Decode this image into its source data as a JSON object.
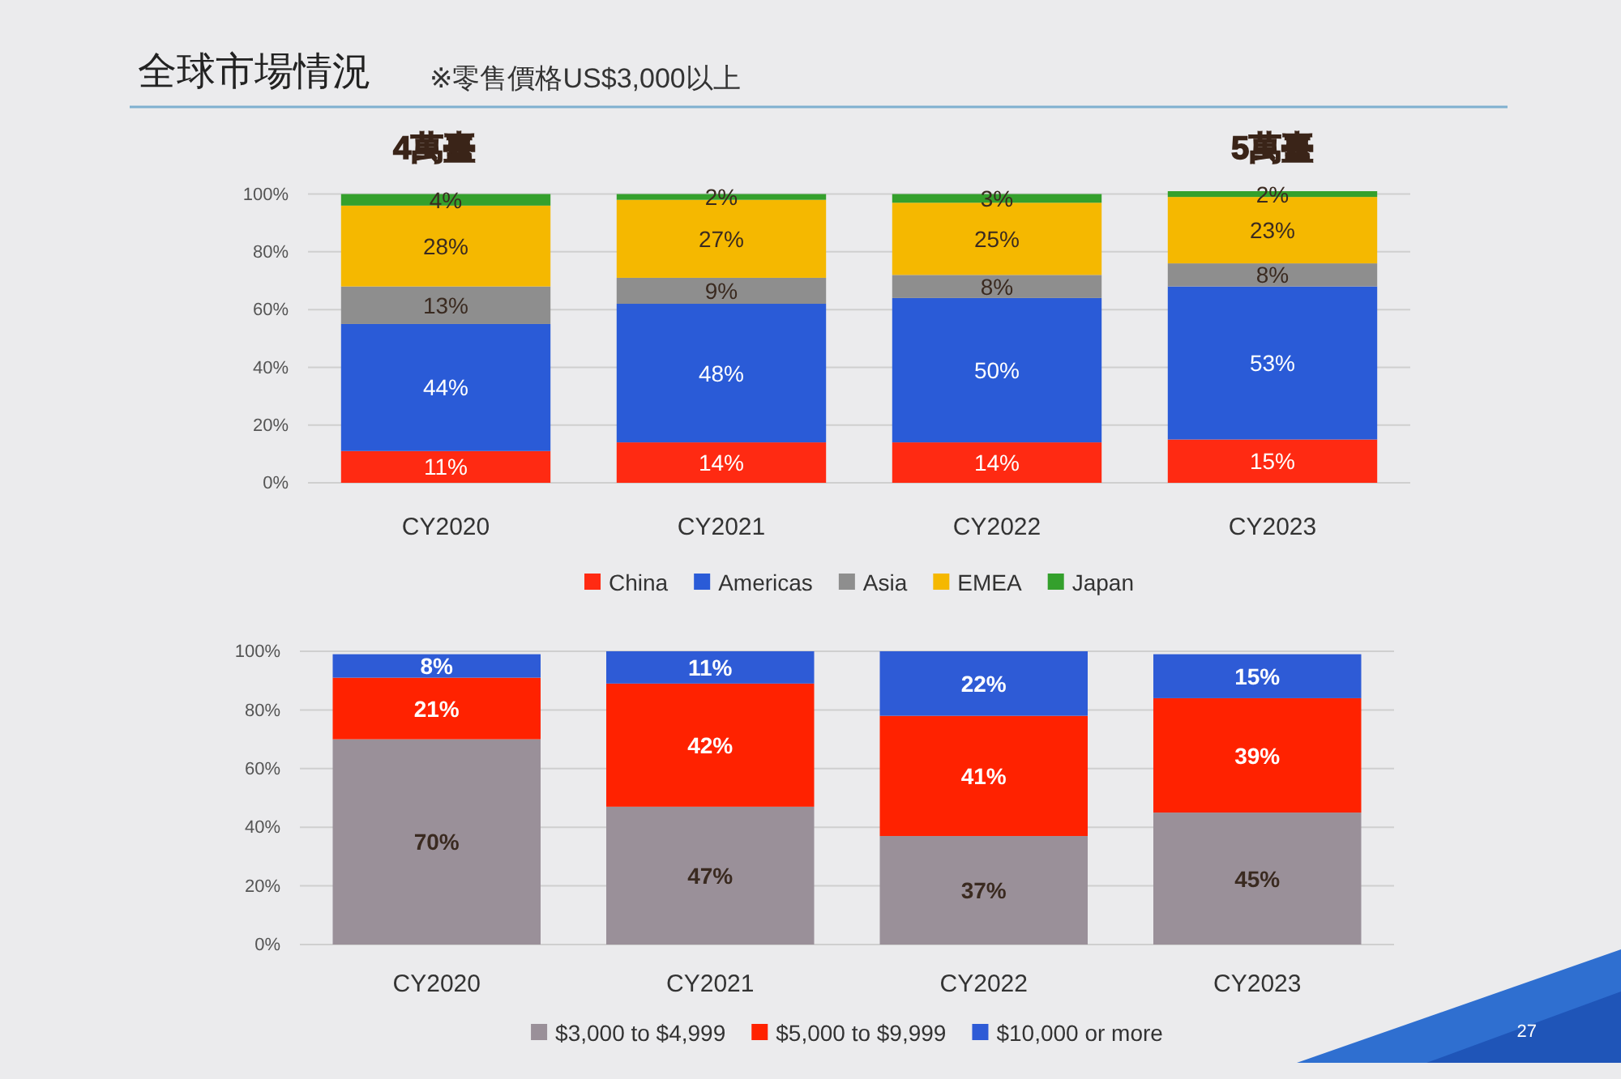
{
  "chart_data": [
    {
      "type": "bar",
      "stacked": true,
      "title": "全球市場情況",
      "subtitle": "※零售價格US$3,000以上",
      "categories": [
        "CY2020",
        "CY2021",
        "CY2022",
        "CY2023"
      ],
      "series": [
        {
          "name": "China",
          "color": "#ff2a12",
          "values": [
            11,
            14,
            14,
            15
          ],
          "value_labels": [
            "11%",
            "14%",
            "14%",
            "15%"
          ]
        },
        {
          "name": "Americas",
          "color": "#2a5bd7",
          "values": [
            44,
            48,
            50,
            53
          ],
          "value_labels": [
            "44%",
            "48%",
            "50%",
            "53%"
          ]
        },
        {
          "name": "Asia",
          "color": "#8e8e8e",
          "values": [
            13,
            9,
            8,
            8
          ],
          "value_labels": [
            "13%",
            "9%",
            "8%",
            "8%"
          ]
        },
        {
          "name": "EMEA",
          "color": "#f5b800",
          "values": [
            28,
            27,
            25,
            23
          ],
          "value_labels": [
            "28%",
            "27%",
            "25%",
            "23%"
          ]
        },
        {
          "name": "Japan",
          "color": "#34a02c",
          "values": [
            4,
            2,
            3,
            2
          ],
          "value_labels": [
            "4%",
            "2%",
            "3%",
            "2%"
          ]
        }
      ],
      "ylim": [
        0,
        101
      ],
      "yticks": [
        {
          "value": 0,
          "label": "0%"
        },
        {
          "value": 20,
          "label": "20%"
        },
        {
          "value": 40,
          "label": "40%"
        },
        {
          "value": 60,
          "label": "60%"
        },
        {
          "value": 80,
          "label": "80%"
        },
        {
          "value": 100,
          "label": "100%"
        }
      ],
      "grid": "y",
      "legend": "bottom",
      "annotations": [
        "4萬臺",
        "5萬臺"
      ]
    },
    {
      "type": "bar",
      "stacked": true,
      "categories": [
        "CY2020",
        "CY2021",
        "CY2022",
        "CY2023"
      ],
      "series": [
        {
          "name": "$3,000 to $4,999",
          "color": "#9a9099",
          "values": [
            70,
            47,
            37,
            45
          ],
          "value_labels": [
            "70%",
            "47%",
            "37%",
            "45%"
          ]
        },
        {
          "name": "$5,000 to $9,999",
          "color": "#ff2200",
          "values": [
            21,
            42,
            41,
            39
          ],
          "value_labels": [
            "21%",
            "42%",
            "41%",
            "39%"
          ]
        },
        {
          "name": "$10,000 or more",
          "color": "#2e5bd6",
          "values": [
            8,
            11,
            22,
            15
          ],
          "value_labels": [
            "8%",
            "11%",
            "22%",
            "15%"
          ]
        }
      ],
      "ylim": [
        0,
        100
      ],
      "yticks": [
        {
          "value": 0,
          "label": "0%"
        },
        {
          "value": 20,
          "label": "20%"
        },
        {
          "value": 40,
          "label": "40%"
        },
        {
          "value": 60,
          "label": "60%"
        },
        {
          "value": 80,
          "label": "80%"
        },
        {
          "value": 100,
          "label": "100%"
        }
      ],
      "grid": "y",
      "legend": "bottom",
      "annotations": [
        "27"
      ]
    }
  ]
}
